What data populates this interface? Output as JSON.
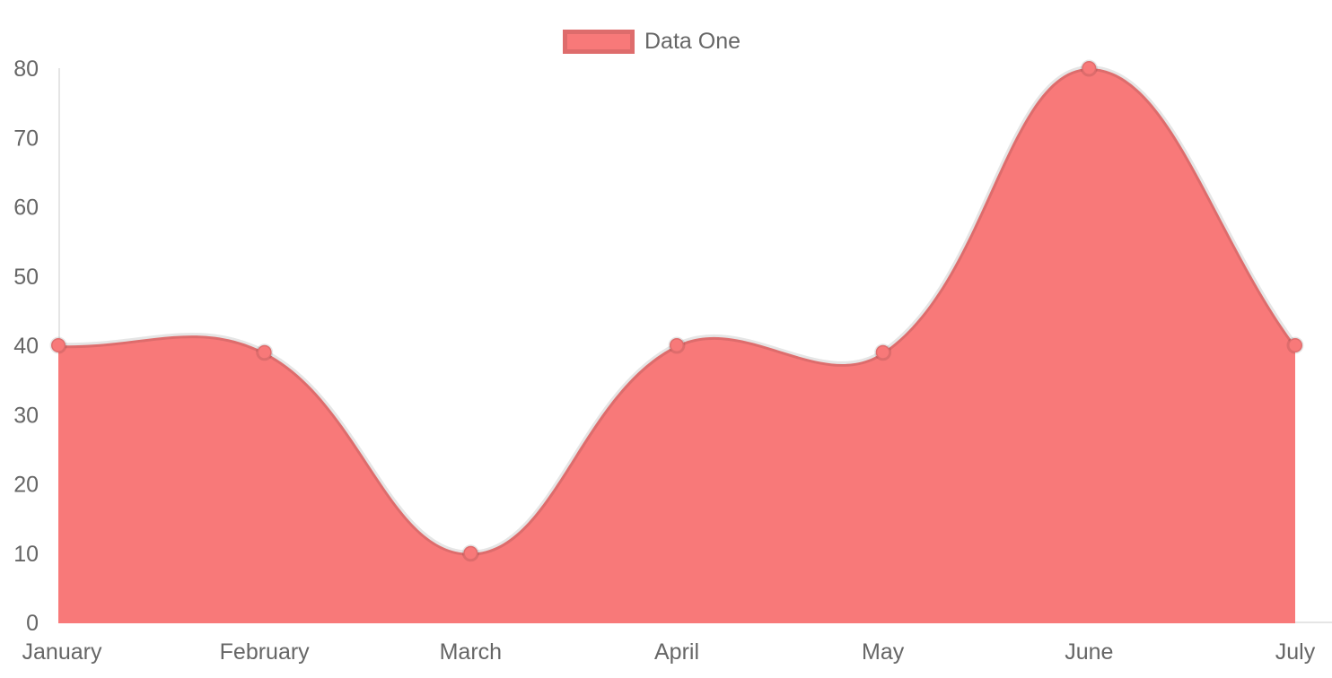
{
  "chart_data": {
    "type": "area",
    "title": "",
    "categories": [
      "January",
      "February",
      "March",
      "April",
      "May",
      "June",
      "July"
    ],
    "series": [
      {
        "name": "Data One",
        "values": [
          40,
          39,
          10,
          40,
          39,
          80,
          40
        ]
      }
    ],
    "ylim": [
      0,
      80
    ],
    "yticks": [
      0,
      10,
      20,
      30,
      40,
      50,
      60,
      70,
      80
    ],
    "xlabel": "",
    "ylabel": "",
    "grid": false,
    "legend_position": "top",
    "curve": "bezier-tension-0.4"
  },
  "legend": {
    "items": [
      {
        "label": "Data One",
        "color": "#f87979"
      }
    ]
  },
  "colors": {
    "series_fill": "#f87979",
    "line_border": "rgba(0,0,0,0.1)",
    "point_fill": "#f87979",
    "point_border": "rgba(0,0,0,0.1)",
    "axis_line": "rgba(0,0,0,0.1)",
    "tick_text": "#666666",
    "background": "#ffffff"
  }
}
